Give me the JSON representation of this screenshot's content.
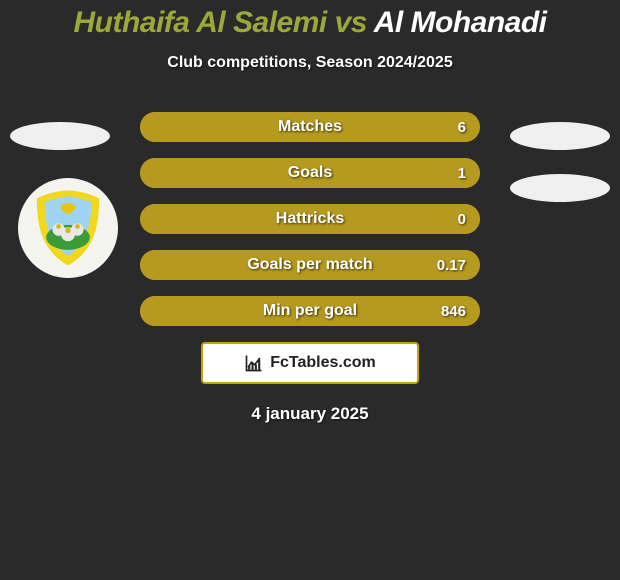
{
  "title": {
    "player1": "Huthaifa Al Salemi",
    "vs": " vs ",
    "player2": "Al Mohanadi",
    "color1": "#9aa93a",
    "color2": "#ffffff"
  },
  "subtitle": "Club competitions, Season 2024/2025",
  "bars": {
    "track_color": "#8c7a18",
    "fill_color": "#b59a1f",
    "items": [
      {
        "label": "Matches",
        "left": "",
        "right": "6",
        "fill_pct": 100
      },
      {
        "label": "Goals",
        "left": "",
        "right": "1",
        "fill_pct": 100
      },
      {
        "label": "Hattricks",
        "left": "",
        "right": "0",
        "fill_pct": 100
      },
      {
        "label": "Goals per match",
        "left": "",
        "right": "0.17",
        "fill_pct": 100
      },
      {
        "label": "Min per goal",
        "left": "",
        "right": "846",
        "fill_pct": 100
      }
    ]
  },
  "badge": {
    "text": "FcTables.com"
  },
  "date": "4 january 2025",
  "logo_colors": {
    "outer": "#f1d71e",
    "sky": "#9fd4f0",
    "grass": "#3a9b3a",
    "figures": "#e8e8e8"
  }
}
